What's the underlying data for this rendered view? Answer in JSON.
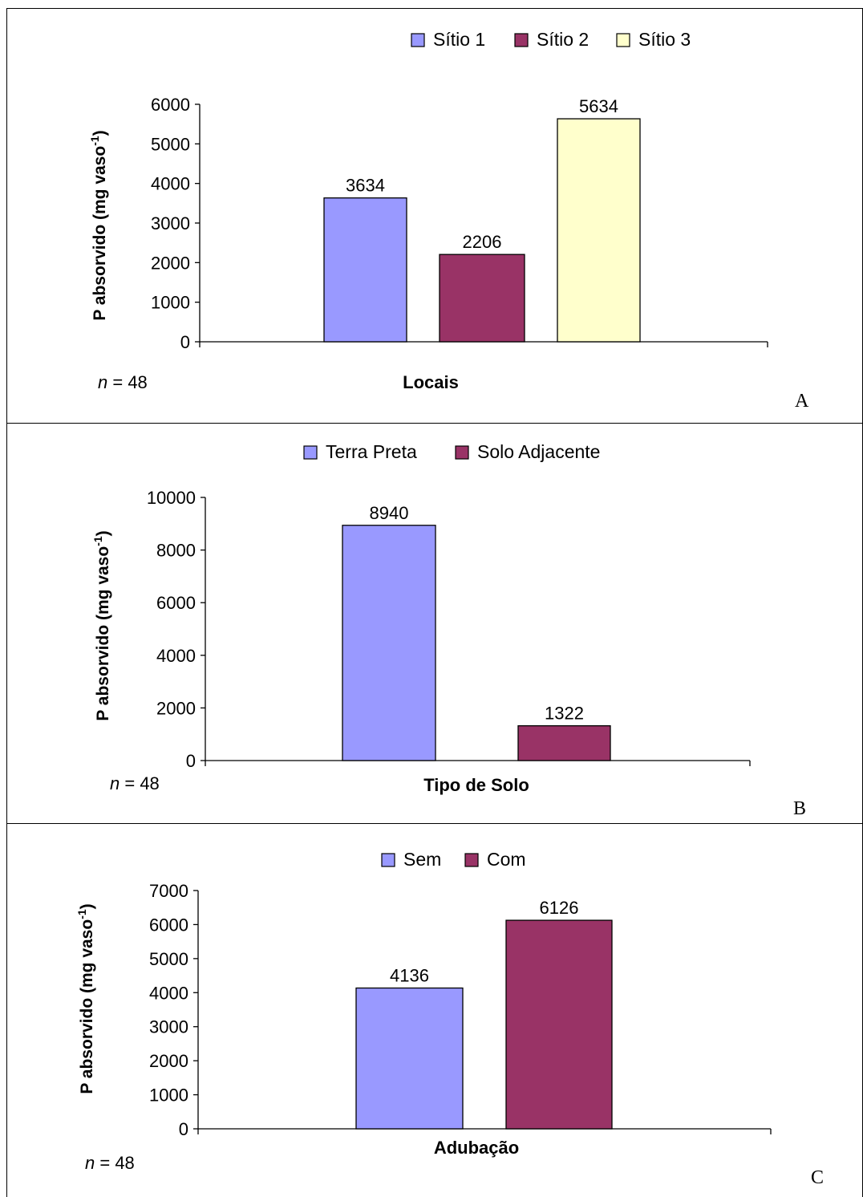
{
  "charts": [
    {
      "letter": "A",
      "n_label": {
        "symbol": "n",
        "text": " = 48"
      },
      "chart_data": {
        "type": "bar",
        "categories": [
          "Sítio 1",
          "Sítio 2",
          "Sítio 3"
        ],
        "values": [
          3634,
          2206,
          5634
        ],
        "colors": [
          "#9999ff",
          "#993366",
          "#ffffcc"
        ],
        "title": "",
        "xlabel": "Locais",
        "ylabel": "P absorvido (mg vaso",
        "ylabel_sup": "-1",
        "ylabel_end": ")",
        "ylim": [
          0,
          6000
        ],
        "yticks": [
          0,
          1000,
          2000,
          3000,
          4000,
          5000,
          6000
        ],
        "grid": false,
        "legend": "top"
      }
    },
    {
      "letter": "B",
      "n_label": {
        "symbol": "n",
        "text": " = 48"
      },
      "chart_data": {
        "type": "bar",
        "categories": [
          "Terra Preta",
          "Solo Adjacente"
        ],
        "values": [
          8940,
          1322
        ],
        "colors": [
          "#9999ff",
          "#993366"
        ],
        "title": "",
        "xlabel": "Tipo de Solo",
        "ylabel": "P absorvido (mg vaso",
        "ylabel_sup": "-1",
        "ylabel_end": ")",
        "ylim": [
          0,
          10000
        ],
        "yticks": [
          0,
          2000,
          4000,
          6000,
          8000,
          10000
        ],
        "grid": false,
        "legend": "top"
      }
    },
    {
      "letter": "C",
      "n_label": {
        "symbol": "n",
        "text": " = 48"
      },
      "chart_data": {
        "type": "bar",
        "categories": [
          "Sem",
          "Com"
        ],
        "values": [
          4136,
          6126
        ],
        "colors": [
          "#9999ff",
          "#993366"
        ],
        "title": "",
        "xlabel": "Adubação",
        "ylabel": "P absorvido (mg vaso",
        "ylabel_sup": "-1",
        "ylabel_end": ")",
        "ylim": [
          0,
          7000
        ],
        "yticks": [
          0,
          1000,
          2000,
          3000,
          4000,
          5000,
          6000,
          7000
        ],
        "grid": false,
        "legend": "top"
      }
    }
  ]
}
